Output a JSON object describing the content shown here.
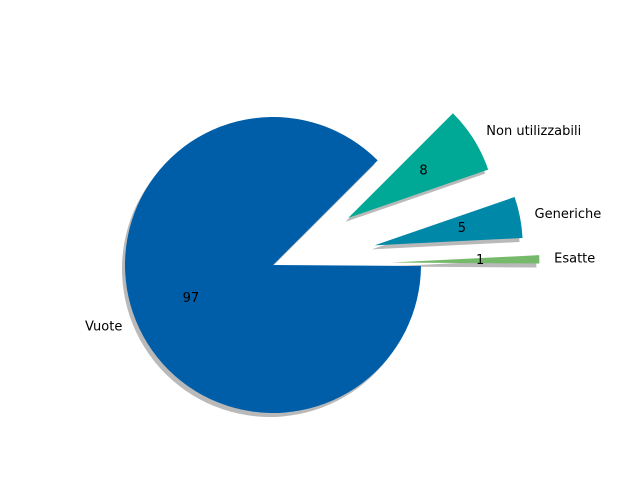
{
  "chart_data": {
    "type": "pie",
    "title": "",
    "start_angle_deg": 45,
    "shadow": true,
    "legend": "none",
    "slices": [
      {
        "label": "Vuote",
        "value": 97,
        "color": "#005ea8",
        "explode": 0.0
      },
      {
        "label": "Esatte",
        "value": 1,
        "color": "#76b96b",
        "explode": 0.8
      },
      {
        "label": "Generiche",
        "value": 5,
        "color": "#0088a8",
        "explode": 0.7
      },
      {
        "label": "Non utilizzabili",
        "value": 8,
        "color": "#00a896",
        "explode": 0.6
      }
    ]
  }
}
